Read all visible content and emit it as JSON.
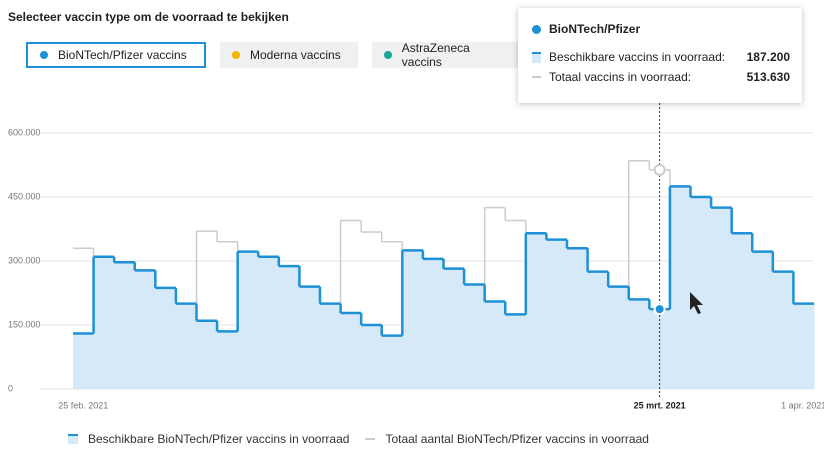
{
  "header": {
    "title": "Selecteer vaccin type om de voorraad te bekijken"
  },
  "buttons": [
    {
      "label": "BioNTech/Pfizer vaccins",
      "color": "#1e90d6"
    },
    {
      "label": "Moderna vaccins",
      "color": "#f5b400"
    },
    {
      "label": "AstraZeneca vaccins",
      "color": "#1aa89a"
    }
  ],
  "tooltip": {
    "title": "BioNTech/Pfizer",
    "rows": [
      {
        "label": "Beschikbare vaccins in voorraad:",
        "value": "187.200"
      },
      {
        "label": "Totaal vaccins in voorraad:",
        "value": "513.630"
      }
    ]
  },
  "chart_data": {
    "type": "step-area",
    "categories": [
      "25 feb. 2021",
      null,
      null,
      null,
      null,
      null,
      null,
      null,
      null,
      null,
      null,
      null,
      null,
      null,
      null,
      null,
      null,
      null,
      null,
      null,
      null,
      null,
      null,
      null,
      null,
      null,
      null,
      null,
      "25 mrt. 2021",
      null,
      null,
      null,
      null,
      null,
      null,
      "1 apr. 2021"
    ],
    "series": [
      {
        "name": "Beschikbare BioNTech/Pfizer vaccins in voorraad",
        "color": "#1e90d6",
        "values": [
          130000,
          310000,
          297000,
          278000,
          237000,
          200000,
          160000,
          135000,
          322000,
          310000,
          288000,
          240000,
          200000,
          178000,
          150000,
          125000,
          325000,
          305000,
          282000,
          245000,
          205000,
          175000,
          365000,
          350000,
          330000,
          275000,
          240000,
          210000,
          187200,
          475000,
          450000,
          425000,
          365000,
          322000,
          275000,
          200000
        ]
      },
      {
        "name": "Totaal aantal BioNTech/Pfizer vaccins in voorraad",
        "color": "#cccccc",
        "values": [
          330000,
          310000,
          297000,
          278000,
          237000,
          200000,
          370000,
          345000,
          322000,
          310000,
          288000,
          240000,
          200000,
          395000,
          368000,
          345000,
          325000,
          305000,
          282000,
          245000,
          425000,
          395000,
          365000,
          350000,
          330000,
          275000,
          240000,
          535000,
          513630,
          475000,
          450000,
          425000,
          365000,
          322000,
          275000,
          200000
        ]
      }
    ],
    "ylim": [
      0,
      600000
    ],
    "yticks": [
      0,
      {
        "value": 150000,
        "label": "150.000"
      },
      {
        "value": 300000,
        "label": "300.000"
      },
      {
        "value": 450000,
        "label": "450.000"
      },
      {
        "value": 600000,
        "label": "600.000"
      }
    ],
    "grid": true,
    "highlight_index": 28
  }
}
